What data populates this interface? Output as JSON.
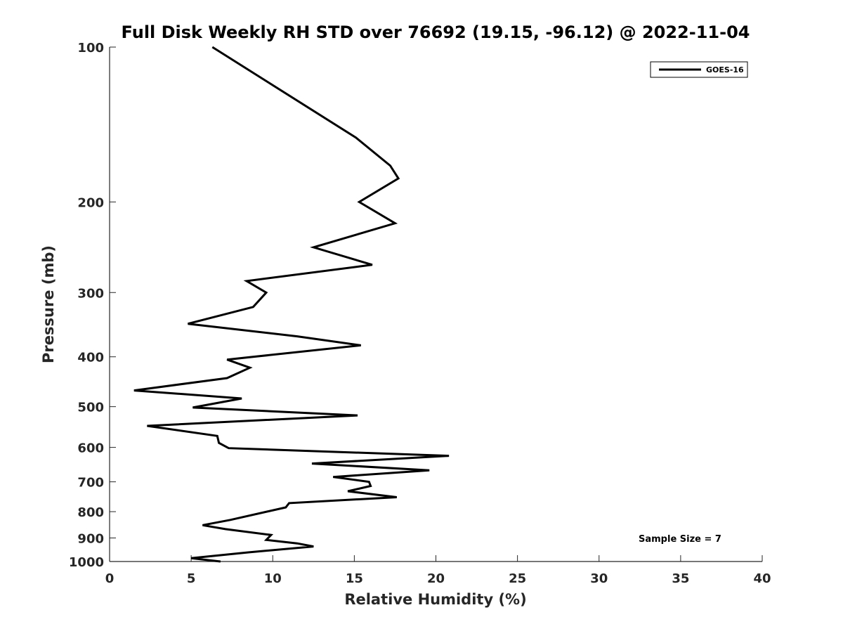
{
  "chart_data": {
    "type": "line",
    "title": "Full Disk Weekly RH STD over 76692 (19.15, -96.12) @ 2022-11-04",
    "xlabel": "Relative Humidity (%)",
    "ylabel": "Pressure (mb)",
    "xlim": [
      0,
      40
    ],
    "ylim": [
      1000,
      100
    ],
    "y_scale": "log",
    "y_reversed": true,
    "x_ticks": [
      0,
      5,
      10,
      15,
      20,
      25,
      30,
      35,
      40
    ],
    "y_ticks": [
      100,
      200,
      300,
      400,
      500,
      600,
      700,
      800,
      900,
      1000
    ],
    "grid": false,
    "legend_position": "top-right",
    "annotation": "Sample Size = 7",
    "series": [
      {
        "name": "GOES-16",
        "color": "#000000",
        "points": [
          [
            6.3,
            100
          ],
          [
            15.1,
            150
          ],
          [
            17.2,
            170
          ],
          [
            17.7,
            180
          ],
          [
            15.3,
            200
          ],
          [
            17.5,
            220
          ],
          [
            12.5,
            245
          ],
          [
            16.1,
            265
          ],
          [
            8.4,
            285
          ],
          [
            9.6,
            300
          ],
          [
            8.8,
            320
          ],
          [
            4.8,
            345
          ],
          [
            11.5,
            365
          ],
          [
            15.4,
            380
          ],
          [
            7.2,
            405
          ],
          [
            8.6,
            420
          ],
          [
            7.2,
            440
          ],
          [
            1.5,
            465
          ],
          [
            8.1,
            482
          ],
          [
            5.1,
            502
          ],
          [
            15.2,
            520
          ],
          [
            2.3,
            545
          ],
          [
            6.6,
            570
          ],
          [
            6.7,
            588
          ],
          [
            7.3,
            602
          ],
          [
            20.8,
            623
          ],
          [
            12.4,
            645
          ],
          [
            19.6,
            665
          ],
          [
            13.7,
            685
          ],
          [
            15.9,
            700
          ],
          [
            16.0,
            713
          ],
          [
            14.6,
            730
          ],
          [
            17.6,
            750
          ],
          [
            11.0,
            770
          ],
          [
            10.8,
            785
          ],
          [
            7.4,
            830
          ],
          [
            5.7,
            850
          ],
          [
            7.1,
            865
          ],
          [
            9.9,
            888
          ],
          [
            9.6,
            908
          ],
          [
            11.5,
            922
          ],
          [
            12.5,
            935
          ],
          [
            8.5,
            960
          ],
          [
            5.0,
            985
          ],
          [
            6.8,
            1000
          ]
        ]
      }
    ]
  }
}
